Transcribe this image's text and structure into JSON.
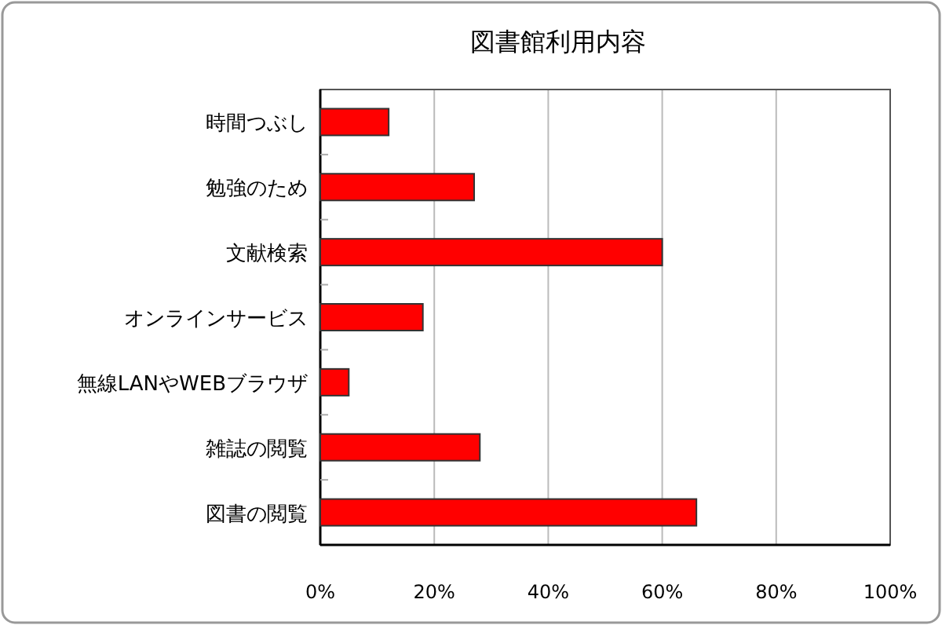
{
  "chart_data": {
    "type": "bar",
    "orientation": "horizontal",
    "title": "図書館利用内容",
    "categories": [
      "時間つぶし",
      "勉強のため",
      "文献検索",
      "オンラインサービス",
      "無線LANやWEBブラウザ",
      "雑誌の閲覧",
      "図書の閲覧"
    ],
    "values": [
      12,
      27,
      60,
      18,
      5,
      28,
      66
    ],
    "color": "#ff0000",
    "xlim": [
      0,
      100
    ],
    "xticks": [
      {
        "value": 0,
        "label": "0%"
      },
      {
        "value": 20,
        "label": "20%"
      },
      {
        "value": 40,
        "label": "40%"
      },
      {
        "value": 60,
        "label": "60%"
      },
      {
        "value": 80,
        "label": "80%"
      },
      {
        "value": 100,
        "label": "100%"
      }
    ],
    "grid": "x"
  }
}
